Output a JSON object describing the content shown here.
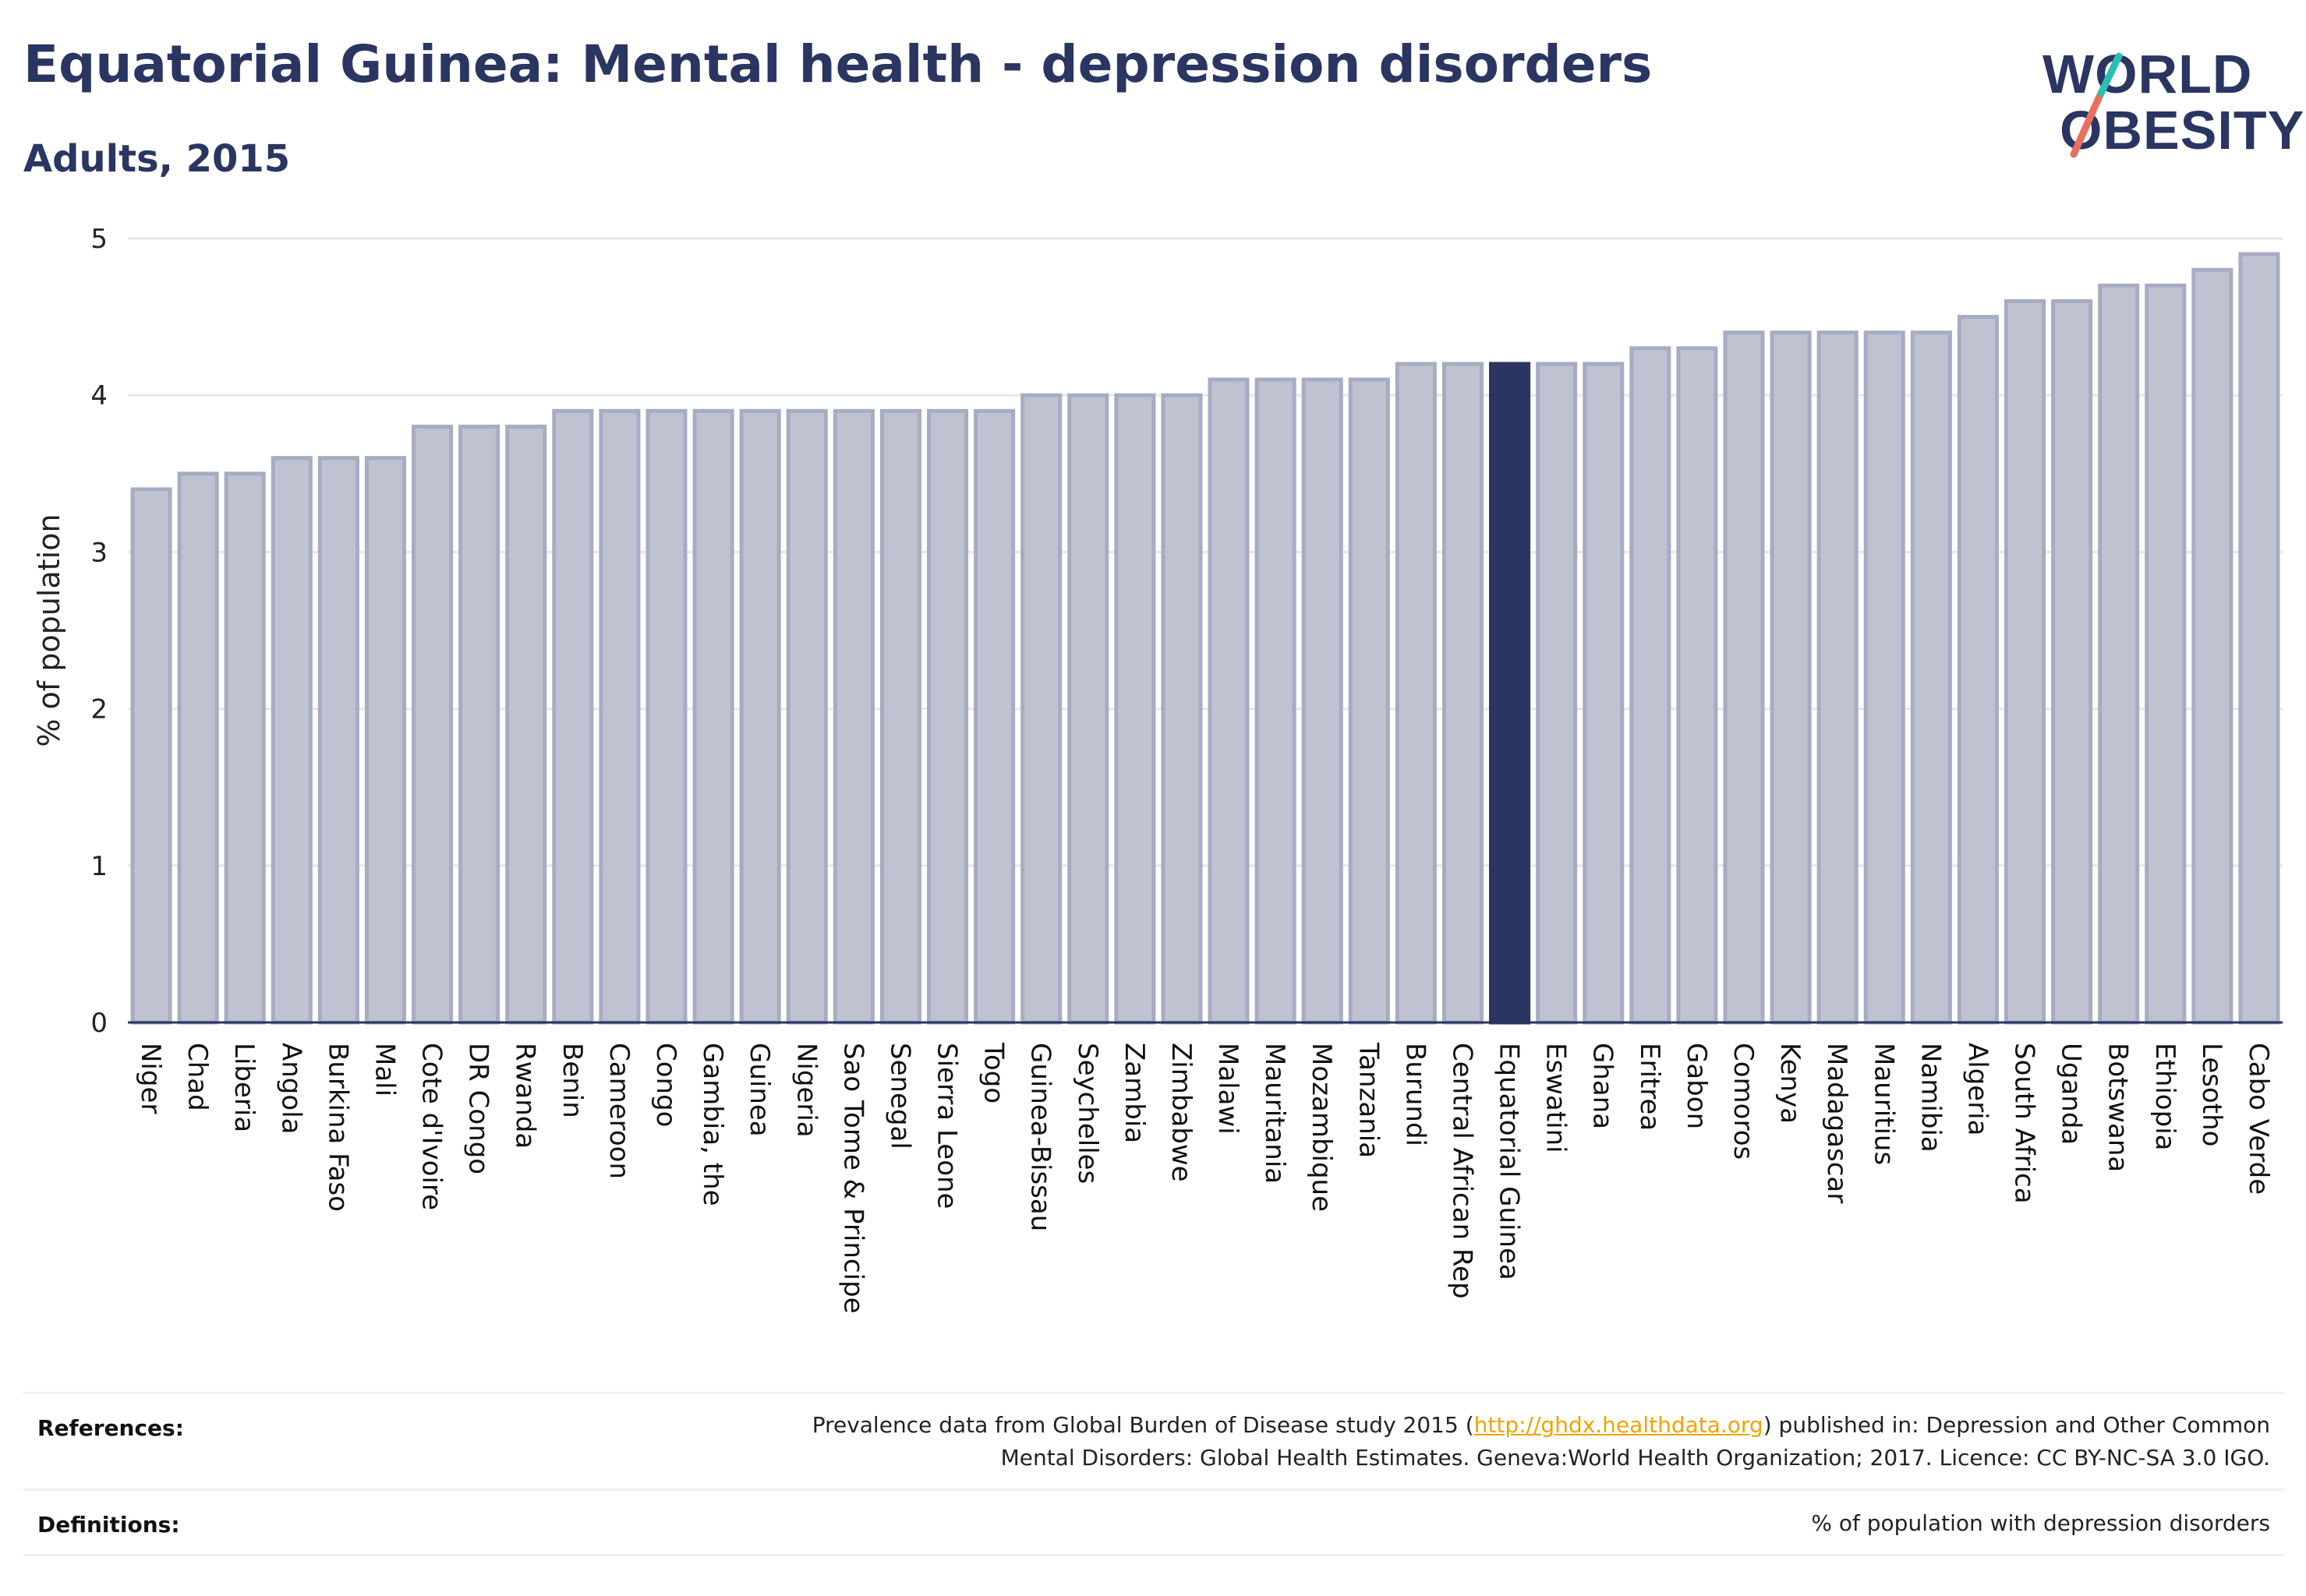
{
  "header": {
    "title": "Equatorial Guinea: Mental health - depression disorders",
    "subtitle": "Adults, 2015"
  },
  "logo": {
    "line1": "WORLD",
    "line2": "OBESITY",
    "slash_colors": [
      "#2bbfb3",
      "#e8705e"
    ]
  },
  "footer": {
    "references_label": "References:",
    "references_text_before": "Prevalence data from Global Burden of Disease study 2015 (",
    "references_link": "http://ghdx.healthdata.org",
    "references_text_after": ") published in: Depression and Other Common",
    "references_line2": "Mental Disorders: Global Health Estimates. Geneva:World Health Organization; 2017. Licence: CC BY-NC-SA 3.0 IGO.",
    "definitions_label": "Definitions:",
    "definitions_text": "% of population with depression disorders"
  },
  "colors": {
    "bar_fill": "#bfc3d1",
    "bar_stroke": "#a7acc2",
    "highlight": "#2a3562",
    "grid": "#e6e8ef",
    "axis": "#2a3562",
    "link": "#f0a400"
  },
  "chart_data": {
    "type": "bar",
    "title": "",
    "xlabel": "",
    "ylabel": "% of population",
    "ylim": [
      0,
      5
    ],
    "yticks": [
      "0",
      "1",
      "2",
      "3",
      "4",
      "5"
    ],
    "grid": true,
    "highlight": "Equatorial Guinea",
    "categories": [
      "Niger",
      "Chad",
      "Liberia",
      "Angola",
      "Burkina Faso",
      "Mali",
      "Cote d'Ivoire",
      "DR Congo",
      "Rwanda",
      "Benin",
      "Cameroon",
      "Congo",
      "Gambia, the",
      "Guinea",
      "Nigeria",
      "Sao Tome & Principe",
      "Senegal",
      "Sierra Leone",
      "Togo",
      "Guinea-Bissau",
      "Seychelles",
      "Zambia",
      "Zimbabwe",
      "Malawi",
      "Mauritania",
      "Mozambique",
      "Tanzania",
      "Burundi",
      "Central African Rep",
      "Equatorial Guinea",
      "Eswatini",
      "Ghana",
      "Eritrea",
      "Gabon",
      "Comoros",
      "Kenya",
      "Madagascar",
      "Mauritius",
      "Namibia",
      "Algeria",
      "South Africa",
      "Uganda",
      "Botswana",
      "Ethiopia",
      "Lesotho",
      "Cabo Verde"
    ],
    "values": [
      3.4,
      3.5,
      3.5,
      3.6,
      3.6,
      3.6,
      3.8,
      3.8,
      3.8,
      3.9,
      3.9,
      3.9,
      3.9,
      3.9,
      3.9,
      3.9,
      3.9,
      3.9,
      3.9,
      4.0,
      4.0,
      4.0,
      4.0,
      4.1,
      4.1,
      4.1,
      4.1,
      4.2,
      4.2,
      4.2,
      4.2,
      4.2,
      4.3,
      4.3,
      4.4,
      4.4,
      4.4,
      4.4,
      4.4,
      4.5,
      4.6,
      4.6,
      4.7,
      4.7,
      4.8,
      4.9
    ]
  }
}
